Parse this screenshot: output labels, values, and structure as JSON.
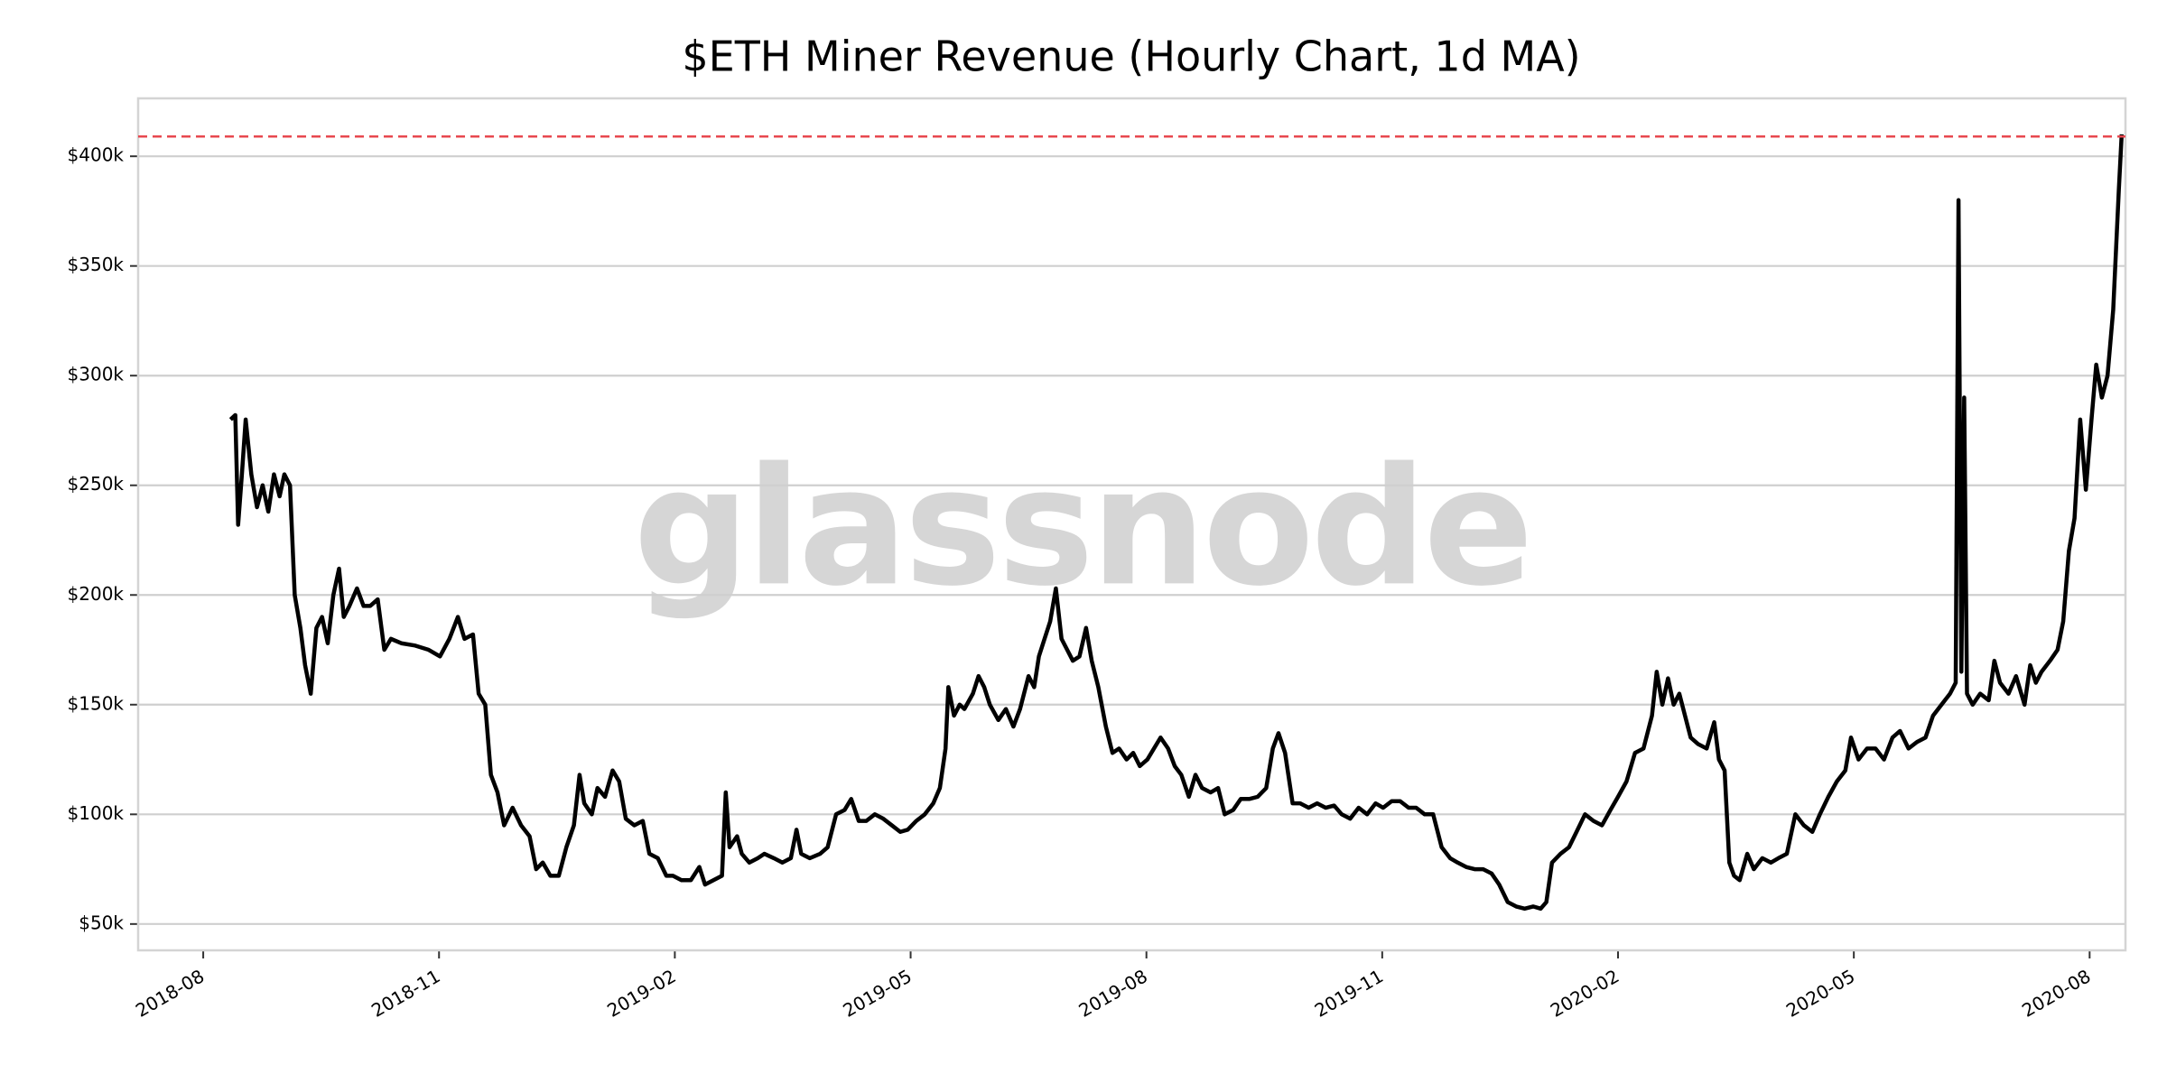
{
  "chart_data": {
    "type": "line",
    "title": "$ETH Miner Revenue (Hourly Chart, 1d MA)",
    "watermark": "glassnode",
    "x": [
      2018.612,
      2018.617,
      2018.62,
      2018.624,
      2018.628,
      2018.634,
      2018.64,
      2018.646,
      2018.652,
      2018.658,
      2018.664,
      2018.669,
      2018.675,
      2018.68,
      2018.686,
      2018.691,
      2018.697,
      2018.703,
      2018.709,
      2018.715,
      2018.721,
      2018.727,
      2018.732,
      2018.738,
      2018.746,
      2018.753,
      2018.76,
      2018.768,
      2018.775,
      2018.782,
      2018.793,
      2018.807,
      2018.822,
      2018.834,
      2018.844,
      2018.853,
      2018.86,
      2018.869,
      2018.875,
      2018.882,
      2018.888,
      2018.895,
      2018.902,
      2018.911,
      2018.92,
      2018.929,
      2018.936,
      2018.943,
      2018.951,
      2018.96,
      2018.968,
      2018.976,
      2018.982,
      2018.987,
      2018.995,
      2019.001,
      2019.009,
      2019.017,
      2019.024,
      2019.031,
      2019.04,
      2019.049,
      2019.056,
      2019.065,
      2019.074,
      2019.081,
      2019.09,
      2019.1,
      2019.109,
      2019.115,
      2019.124,
      2019.133,
      2019.137,
      2019.141,
      2019.149,
      2019.154,
      2019.162,
      2019.171,
      2019.178,
      2019.188,
      2019.197,
      2019.206,
      2019.212,
      2019.217,
      2019.226,
      2019.237,
      2019.245,
      2019.254,
      2019.263,
      2019.27,
      2019.278,
      2019.286,
      2019.295,
      2019.304,
      2019.313,
      2019.322,
      2019.33,
      2019.339,
      2019.348,
      2019.357,
      2019.364,
      2019.37,
      2019.373,
      2019.379,
      2019.385,
      2019.39,
      2019.399,
      2019.405,
      2019.411,
      2019.417,
      2019.426,
      2019.434,
      2019.442,
      2019.449,
      2019.458,
      2019.464,
      2019.469,
      2019.475,
      2019.481,
      2019.487,
      2019.493,
      2019.499,
      2019.505,
      2019.512,
      2019.519,
      2019.525,
      2019.532,
      2019.54,
      2019.547,
      2019.554,
      2019.562,
      2019.569,
      2019.576,
      2019.584,
      2019.591,
      2019.598,
      2019.606,
      2019.613,
      2019.62,
      2019.628,
      2019.635,
      2019.642,
      2019.651,
      2019.659,
      2019.666,
      2019.675,
      2019.683,
      2019.692,
      2019.701,
      2019.71,
      2019.717,
      2019.723,
      2019.73,
      2019.738,
      2019.746,
      2019.755,
      2019.764,
      2019.773,
      2019.782,
      2019.79,
      2019.799,
      2019.808,
      2019.817,
      2019.826,
      2019.834,
      2019.843,
      2019.852,
      2019.861,
      2019.869,
      2019.878,
      2019.887,
      2019.896,
      2019.905,
      2019.913,
      2019.922,
      2019.931,
      2019.94,
      2019.949,
      2019.957,
      2019.966,
      2019.975,
      2019.984,
      2019.993,
      2020.001,
      2020.007,
      2020.013,
      2020.022,
      2020.031,
      2020.039,
      2020.048,
      2020.057,
      2020.066,
      2020.075,
      2020.083,
      2020.092,
      2020.101,
      2020.11,
      2020.119,
      2020.124,
      2020.13,
      2020.136,
      2020.142,
      2020.148,
      2020.154,
      2020.16,
      2020.168,
      2020.177,
      2020.185,
      2020.19,
      2020.196,
      2020.201,
      2020.206,
      2020.212,
      2020.22,
      2020.227,
      2020.236,
      2020.245,
      2020.253,
      2020.262,
      2020.271,
      2020.28,
      2020.289,
      2020.297,
      2020.306,
      2020.315,
      2020.324,
      2020.33,
      2020.338,
      2020.347,
      2020.356,
      2020.365,
      2020.374,
      2020.382,
      2020.391,
      2020.4,
      2020.409,
      2020.417,
      2020.426,
      2020.435,
      2020.441,
      2020.444,
      2020.447,
      2020.45,
      2020.453,
      2020.459,
      2020.467,
      2020.476,
      2020.482,
      2020.488,
      2020.497,
      2020.505,
      2020.514,
      2020.52,
      2020.526,
      2020.532,
      2020.541,
      2020.549,
      2020.555,
      2020.561,
      2020.567,
      2020.573,
      2020.579,
      2020.585,
      2020.59,
      2020.596,
      2020.602,
      2020.608,
      2020.614,
      2020.617
    ],
    "series": [
      {
        "name": "Miner Revenue",
        "color": "#000000",
        "values": [
          280000,
          282000,
          232000,
          255000,
          280000,
          255000,
          240000,
          250000,
          238000,
          255000,
          245000,
          255000,
          250000,
          200000,
          185000,
          168000,
          155000,
          185000,
          190000,
          178000,
          200000,
          212000,
          190000,
          195000,
          203000,
          195000,
          195000,
          198000,
          175000,
          180000,
          178000,
          177000,
          175000,
          172000,
          180000,
          190000,
          180000,
          182000,
          155000,
          150000,
          118000,
          110000,
          95000,
          103000,
          95000,
          90000,
          75000,
          78000,
          72000,
          72000,
          85000,
          95000,
          118000,
          105000,
          100000,
          112000,
          108000,
          120000,
          115000,
          98000,
          95000,
          97000,
          82000,
          80000,
          72000,
          72000,
          70000,
          70000,
          76000,
          68000,
          70000,
          72000,
          110000,
          85000,
          90000,
          82000,
          78000,
          80000,
          82000,
          80000,
          78000,
          80000,
          93000,
          82000,
          80000,
          82000,
          85000,
          100000,
          102000,
          107000,
          97000,
          97000,
          100000,
          98000,
          95000,
          92000,
          93000,
          97000,
          100000,
          105000,
          112000,
          130000,
          158000,
          145000,
          150000,
          148000,
          155000,
          163000,
          158000,
          150000,
          143000,
          148000,
          140000,
          148000,
          163000,
          158000,
          172000,
          180000,
          188000,
          203000,
          180000,
          175000,
          170000,
          172000,
          185000,
          170000,
          158000,
          140000,
          128000,
          130000,
          125000,
          128000,
          122000,
          125000,
          130000,
          135000,
          130000,
          122000,
          118000,
          108000,
          118000,
          112000,
          110000,
          112000,
          100000,
          102000,
          107000,
          107000,
          108000,
          112000,
          130000,
          137000,
          128000,
          105000,
          105000,
          103000,
          105000,
          103000,
          104000,
          100000,
          98000,
          103000,
          100000,
          105000,
          103000,
          106000,
          106000,
          103000,
          103000,
          100000,
          100000,
          85000,
          80000,
          78000,
          76000,
          75000,
          75000,
          73000,
          68000,
          60000,
          58000,
          57000,
          58000,
          57000,
          60000,
          78000,
          82000,
          85000,
          92000,
          100000,
          97000,
          95000,
          102000,
          108000,
          115000,
          128000,
          130000,
          145000,
          165000,
          150000,
          162000,
          150000,
          155000,
          145000,
          135000,
          132000,
          130000,
          142000,
          125000,
          120000,
          78000,
          72000,
          70000,
          82000,
          75000,
          80000,
          78000,
          80000,
          82000,
          100000,
          95000,
          92000,
          100000,
          108000,
          115000,
          120000,
          135000,
          125000,
          130000,
          130000,
          125000,
          135000,
          138000,
          130000,
          133000,
          135000,
          145000,
          150000,
          155000,
          160000,
          380000,
          165000,
          290000,
          155000,
          150000,
          155000,
          152000,
          170000,
          160000,
          155000,
          163000,
          150000,
          168000,
          160000,
          165000,
          170000,
          175000,
          188000,
          220000,
          235000,
          280000,
          248000,
          280000,
          305000,
          290000,
          300000,
          330000,
          385000,
          410000
        ]
      }
    ],
    "reference_line": {
      "value": 409000,
      "color": "#e8484f",
      "style": "dashed"
    },
    "xlim": [
      2018.514,
      2020.621
    ],
    "xticks": [
      {
        "value": 2018.583,
        "label": "2018-08"
      },
      {
        "value": 2018.833,
        "label": "2018-11"
      },
      {
        "value": 2019.083,
        "label": "2019-02"
      },
      {
        "value": 2019.333,
        "label": "2019-05"
      },
      {
        "value": 2019.583,
        "label": "2019-08"
      },
      {
        "value": 2019.833,
        "label": "2019-11"
      },
      {
        "value": 2020.083,
        "label": "2020-02"
      },
      {
        "value": 2020.333,
        "label": "2020-05"
      },
      {
        "value": 2020.583,
        "label": "2020-08"
      }
    ],
    "ylim": [
      38000,
      426400
    ],
    "yticks": [
      {
        "value": 50000,
        "label": "$50k"
      },
      {
        "value": 100000,
        "label": "$100k"
      },
      {
        "value": 150000,
        "label": "$150k"
      },
      {
        "value": 200000,
        "label": "$200k"
      },
      {
        "value": 250000,
        "label": "$250k"
      },
      {
        "value": 300000,
        "label": "$300k"
      },
      {
        "value": 350000,
        "label": "$350k"
      },
      {
        "value": 400000,
        "label": "$400k"
      }
    ],
    "grid": true
  }
}
